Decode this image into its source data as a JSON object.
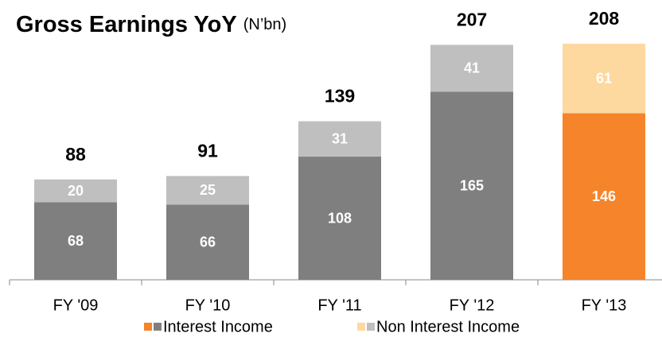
{
  "chart_data": {
    "type": "stacked_bar",
    "title": "Gross Earnings YoY",
    "subtitle": "(N’bn)",
    "categories": [
      "FY '09",
      "FY '10",
      "FY '11",
      "FY '12",
      "FY '13"
    ],
    "series": [
      {
        "name": "Interest Income",
        "values": [
          68,
          66,
          108,
          165,
          146
        ],
        "colors": [
          "#7f7f7f",
          "#7f7f7f",
          "#7f7f7f",
          "#7f7f7f",
          "#f5842a"
        ]
      },
      {
        "name": "Non Interest Income",
        "values": [
          20,
          25,
          31,
          41,
          61
        ],
        "colors": [
          "#bfbfbf",
          "#bfbfbf",
          "#bfbfbf",
          "#bfbfbf",
          "#fdd9a0"
        ]
      }
    ],
    "totals": [
      88,
      91,
      139,
      207,
      208
    ],
    "ylim": [
      0,
      230
    ]
  }
}
